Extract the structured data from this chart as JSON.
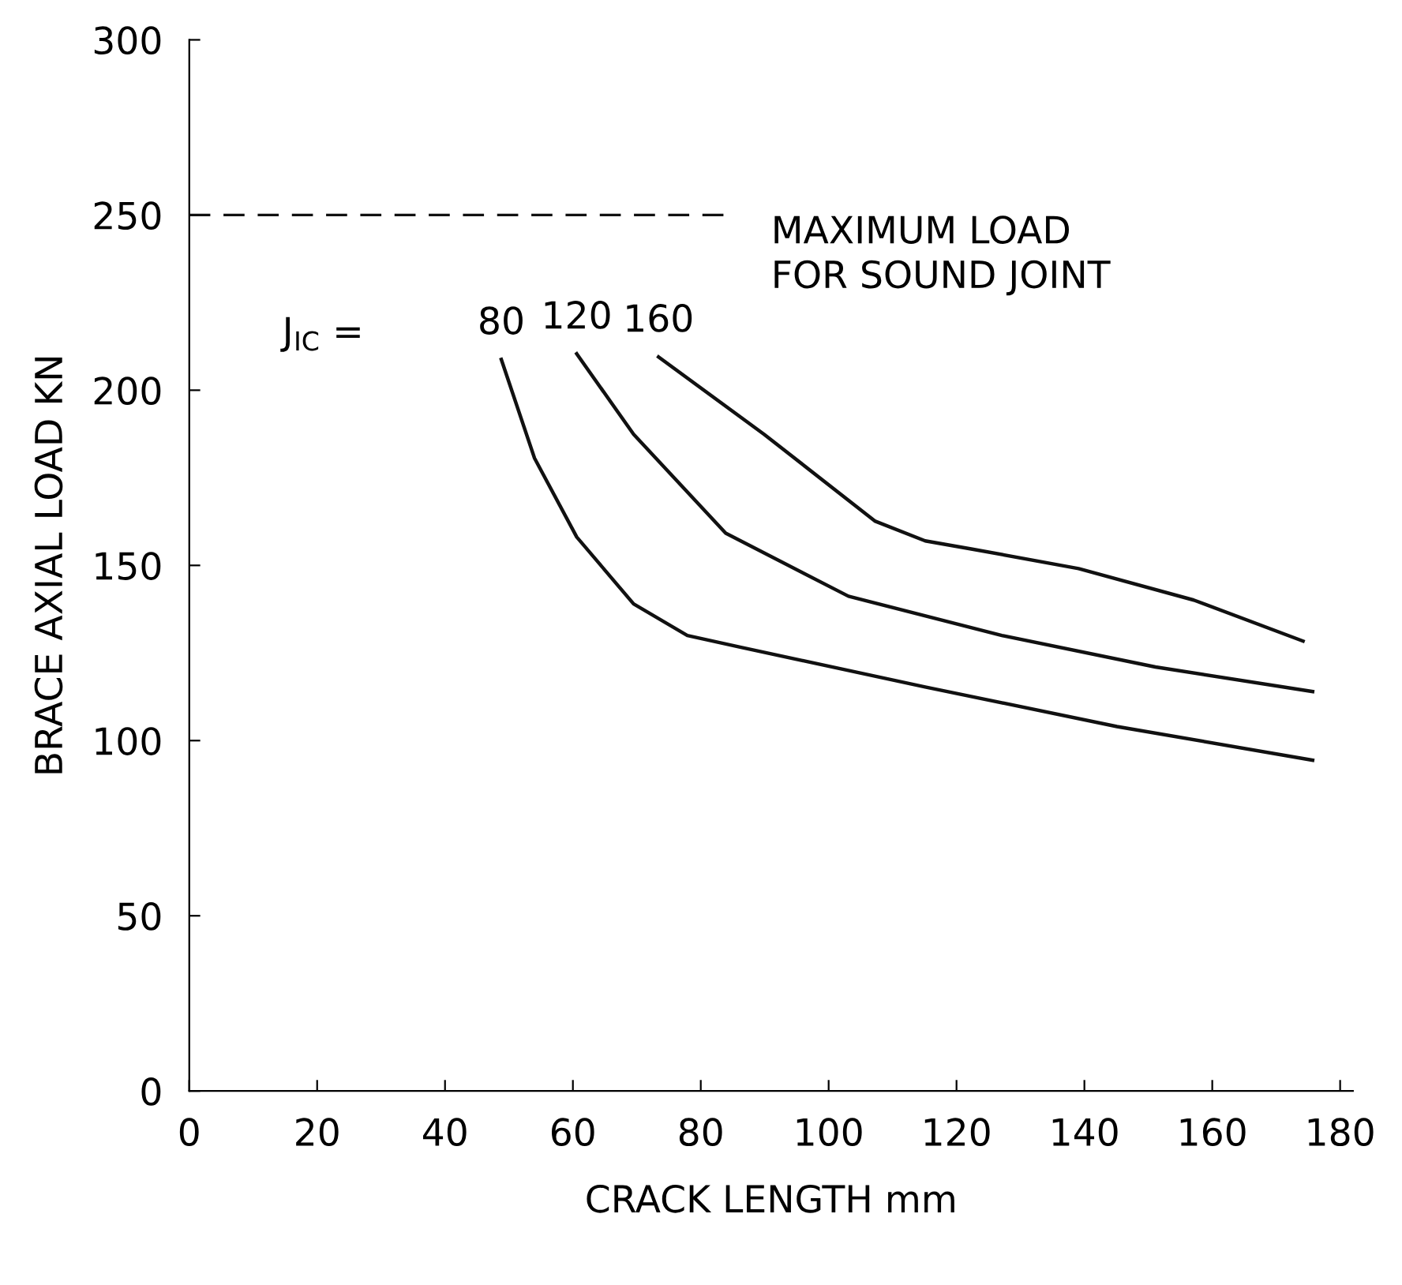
{
  "chart_data": {
    "type": "line",
    "xlabel": "CRACK LENGTH mm",
    "ylabel": "BRACE AXIAL LOAD KN",
    "xlim": [
      0,
      182
    ],
    "ylim": [
      0,
      300
    ],
    "xticks": [
      0,
      20,
      40,
      60,
      80,
      100,
      120,
      140,
      160,
      180
    ],
    "yticks": [
      0,
      50,
      100,
      150,
      200,
      250,
      300
    ],
    "grid": false,
    "legend": false,
    "marker": "none",
    "line_style": "solid",
    "series": [
      {
        "name": "80",
        "color": "#111111",
        "x": [
          48.8,
          54,
          60.6,
          69.5,
          77.9,
          86.3,
          115.1,
          145.1,
          175.7
        ],
        "values": [
          208.8,
          180.6,
          158.1,
          139,
          130,
          126.6,
          115.3,
          104,
          94.4
        ]
      },
      {
        "name": "120",
        "color": "#111111",
        "x": [
          60.6,
          69.5,
          83.9,
          103.1,
          127.1,
          151.1,
          175.7
        ],
        "values": [
          210.4,
          187.4,
          159.2,
          141.2,
          130,
          121,
          114
        ]
      },
      {
        "name": "160",
        "color": "#111111",
        "x": [
          73.4,
          89.9,
          107.3,
          115.1,
          122.3,
          139.1,
          157.1,
          174.2
        ],
        "values": [
          209.5,
          187.4,
          162.6,
          157,
          154.7,
          149.1,
          140.1,
          128.4
        ]
      }
    ],
    "ref_lines": [
      {
        "axis": "y",
        "value": 250,
        "label": "MAXIMUM LOAD\nFOR SOUND JOINT",
        "color": "#111111",
        "line_style": "dashed"
      }
    ],
    "annotations": [
      "J$_{IC}$ ="
    ]
  }
}
